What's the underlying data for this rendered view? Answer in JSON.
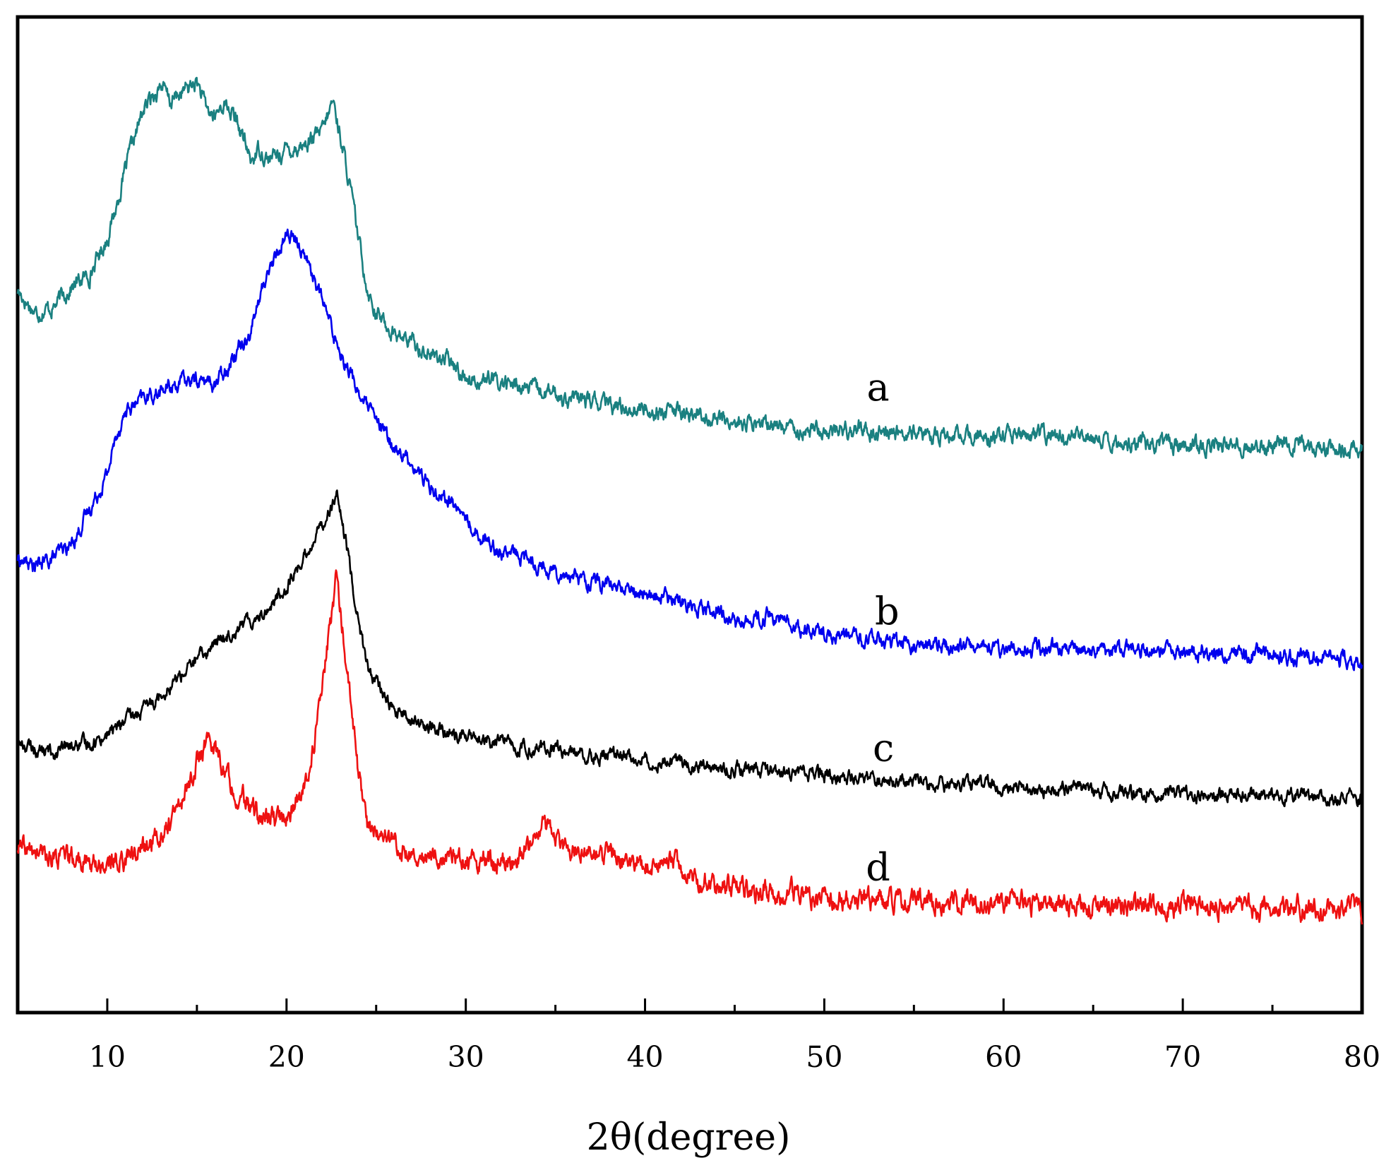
{
  "chart_data": {
    "type": "line",
    "xlabel": "2θ(degree)",
    "ylabel": "",
    "xlim": [
      5,
      80
    ],
    "ylim": [
      0,
      100
    ],
    "x_ticks": [
      10,
      20,
      30,
      40,
      50,
      60,
      70,
      80
    ],
    "y_ticks_shown": false,
    "grid": false,
    "series": [
      {
        "name": "a",
        "color": "#1a8080",
        "noise": 1.2,
        "points": [
          [
            5,
            72.5
          ],
          [
            6,
            70.3
          ],
          [
            7,
            70.9
          ],
          [
            8,
            72.9
          ],
          [
            9,
            74.1
          ],
          [
            10,
            77.8
          ],
          [
            10.5,
            80.9
          ],
          [
            11,
            84.6
          ],
          [
            11.5,
            87.7
          ],
          [
            12,
            90.6
          ],
          [
            13,
            93.3
          ],
          [
            13.5,
            91.4
          ],
          [
            14,
            92.2
          ],
          [
            15,
            93.5
          ],
          [
            15.5,
            90.8
          ],
          [
            16,
            89.9
          ],
          [
            16.5,
            91.4
          ],
          [
            17,
            90.2
          ],
          [
            17.5,
            88.3
          ],
          [
            18,
            85.5
          ],
          [
            18.5,
            86.8
          ],
          [
            19,
            85.7
          ],
          [
            20,
            86.6
          ],
          [
            21,
            87.2
          ],
          [
            22,
            88.4
          ],
          [
            22.6,
            91.6
          ],
          [
            23,
            88.1
          ],
          [
            23.5,
            83.4
          ],
          [
            24,
            77.8
          ],
          [
            24.5,
            72.9
          ],
          [
            25,
            70.3
          ],
          [
            26,
            68.2
          ],
          [
            27,
            67.3
          ],
          [
            28,
            66.1
          ],
          [
            29,
            65.5
          ],
          [
            30,
            63.8
          ],
          [
            32,
            63.3
          ],
          [
            35,
            62.0
          ],
          [
            38,
            61.0
          ],
          [
            40,
            60.6
          ],
          [
            43,
            60.0
          ],
          [
            45,
            59.2
          ],
          [
            48,
            58.9
          ],
          [
            50,
            58.4
          ],
          [
            52,
            58.6
          ],
          [
            55,
            58.0
          ],
          [
            60,
            57.7
          ],
          [
            62,
            58.0
          ],
          [
            65,
            57.6
          ],
          [
            70,
            57.0
          ],
          [
            75,
            57.0
          ],
          [
            80,
            56.7
          ]
        ]
      },
      {
        "name": "b",
        "color": "#0000ee",
        "noise": 1.1,
        "points": [
          [
            5,
            45.6
          ],
          [
            6,
            44.8
          ],
          [
            7,
            45.7
          ],
          [
            8,
            47.0
          ],
          [
            9,
            50.5
          ],
          [
            10,
            54.1
          ],
          [
            10.5,
            58.0
          ],
          [
            11,
            60.3
          ],
          [
            12,
            61.6
          ],
          [
            13,
            62.4
          ],
          [
            14,
            63.3
          ],
          [
            15,
            63.6
          ],
          [
            16,
            63.1
          ],
          [
            16.5,
            64.3
          ],
          [
            17,
            66.1
          ],
          [
            18,
            68.6
          ],
          [
            18.5,
            71.7
          ],
          [
            19,
            74.7
          ],
          [
            19.5,
            76.2
          ],
          [
            20,
            78.4
          ],
          [
            21,
            76.4
          ],
          [
            22,
            71.5
          ],
          [
            22.5,
            68.8
          ],
          [
            23,
            66.5
          ],
          [
            24,
            62.4
          ],
          [
            25,
            59.3
          ],
          [
            26,
            56.8
          ],
          [
            27,
            55.2
          ],
          [
            28,
            52.9
          ],
          [
            29,
            51.6
          ],
          [
            30,
            49.6
          ],
          [
            31,
            47.6
          ],
          [
            32,
            46.4
          ],
          [
            33,
            45.8
          ],
          [
            35,
            44.4
          ],
          [
            37,
            43.3
          ],
          [
            40,
            42.0
          ],
          [
            42,
            41.3
          ],
          [
            44,
            40.5
          ],
          [
            45,
            39.1
          ],
          [
            47,
            39.8
          ],
          [
            49,
            38.3
          ],
          [
            52,
            37.5
          ],
          [
            55,
            37.0
          ],
          [
            60,
            36.6
          ],
          [
            65,
            36.4
          ],
          [
            70,
            36.2
          ],
          [
            75,
            36.0
          ],
          [
            80,
            35.3
          ]
        ]
      },
      {
        "name": "c",
        "color": "#000000",
        "noise": 1.0,
        "points": [
          [
            5,
            27.1
          ],
          [
            6,
            26.4
          ],
          [
            7,
            26.1
          ],
          [
            8,
            26.7
          ],
          [
            9,
            27.0
          ],
          [
            10,
            28.0
          ],
          [
            11,
            29.3
          ],
          [
            12,
            30.3
          ],
          [
            13,
            32.1
          ],
          [
            14,
            33.7
          ],
          [
            15,
            35.4
          ],
          [
            16,
            37.0
          ],
          [
            17,
            38.4
          ],
          [
            18,
            39.4
          ],
          [
            19,
            40.6
          ],
          [
            20,
            42.9
          ],
          [
            21,
            45.8
          ],
          [
            22,
            49.2
          ],
          [
            22.8,
            51.8
          ],
          [
            23.5,
            45.3
          ],
          [
            24,
            39.4
          ],
          [
            24.5,
            34.7
          ],
          [
            25,
            33.1
          ],
          [
            26,
            30.3
          ],
          [
            27,
            29.3
          ],
          [
            28,
            28.6
          ],
          [
            29,
            28.0
          ],
          [
            30,
            27.8
          ],
          [
            31,
            27.1
          ],
          [
            32,
            27.3
          ],
          [
            33,
            26.7
          ],
          [
            35,
            26.4
          ],
          [
            37,
            25.9
          ],
          [
            40,
            25.5
          ],
          [
            43,
            25.0
          ],
          [
            45,
            24.5
          ],
          [
            48,
            24.2
          ],
          [
            50,
            23.8
          ],
          [
            55,
            23.1
          ],
          [
            60,
            22.7
          ],
          [
            65,
            22.3
          ],
          [
            70,
            21.9
          ],
          [
            75,
            21.8
          ],
          [
            80,
            21.3
          ]
        ]
      },
      {
        "name": "d",
        "color": "#ee1111",
        "noise": 1.5,
        "points": [
          [
            5,
            16.5
          ],
          [
            6,
            15.9
          ],
          [
            7,
            15.6
          ],
          [
            8,
            15.3
          ],
          [
            9,
            15.0
          ],
          [
            10,
            14.8
          ],
          [
            11,
            15.6
          ],
          [
            12,
            16.5
          ],
          [
            13,
            17.9
          ],
          [
            14,
            20.5
          ],
          [
            15,
            25.1
          ],
          [
            15.5,
            27.1
          ],
          [
            16,
            26.6
          ],
          [
            16.5,
            24.6
          ],
          [
            17,
            22.7
          ],
          [
            18,
            20.4
          ],
          [
            19,
            19.4
          ],
          [
            20,
            19.6
          ],
          [
            21,
            22.3
          ],
          [
            21.5,
            26.6
          ],
          [
            22,
            32.6
          ],
          [
            22.5,
            39.8
          ],
          [
            22.8,
            43.9
          ],
          [
            23,
            40.5
          ],
          [
            23.5,
            32.6
          ],
          [
            24,
            24.0
          ],
          [
            24.5,
            19.0
          ],
          [
            25,
            18.0
          ],
          [
            26,
            17.2
          ],
          [
            27,
            16.1
          ],
          [
            28,
            15.6
          ],
          [
            30,
            15.3
          ],
          [
            32,
            15.0
          ],
          [
            33,
            15.3
          ],
          [
            34,
            17.3
          ],
          [
            34.3,
            19.4
          ],
          [
            35,
            17.2
          ],
          [
            36,
            16.3
          ],
          [
            38,
            15.6
          ],
          [
            40,
            15.0
          ],
          [
            42,
            15.0
          ],
          [
            43,
            13.0
          ],
          [
            45,
            12.4
          ],
          [
            47,
            12.1
          ],
          [
            50,
            11.5
          ],
          [
            55,
            11.2
          ],
          [
            60,
            11.0
          ],
          [
            65,
            10.9
          ],
          [
            70,
            10.7
          ],
          [
            75,
            10.6
          ],
          [
            80,
            10.2
          ]
        ]
      }
    ],
    "series_labels": [
      {
        "series": "a",
        "x": 53,
        "y": 61.5
      },
      {
        "series": "b",
        "x": 53.5,
        "y": 39.0
      },
      {
        "series": "c",
        "x": 53.3,
        "y": 25.3
      },
      {
        "series": "d",
        "x": 53.0,
        "y": 13.3
      }
    ]
  }
}
